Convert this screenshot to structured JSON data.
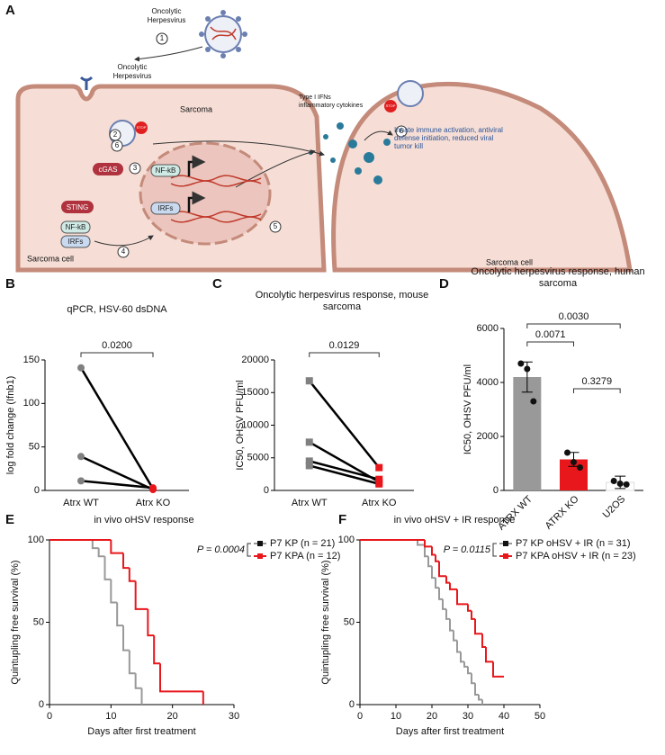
{
  "diagram": {
    "panel": "A",
    "virus_label_top": "Oncolytic Herpesvirus",
    "virus_label_mid": "Oncolytic Herpesvirus",
    "sarcoma": "Sarcoma",
    "sarcoma_cell_left": "Sarcoma cell",
    "sarcoma_cell_right": "Sarcoma cell",
    "cgas": "cGAS",
    "sting": "STING",
    "nfkb_cyto": "NF-kB",
    "irfs_cyto": "IRFs",
    "nfkb_nucleus": "NF-kB",
    "irfs_nucleus": "IRFs",
    "stop_1": "STOP",
    "stop_2": "STOP",
    "cytokines": "Type I IFNs inflammatory cytokines",
    "outcome": "Innate immune activation, antiviral defense initiation, reduced viral tumor kill",
    "steps": [
      1,
      2,
      6,
      3,
      4,
      5,
      6
    ]
  },
  "chart_data": [
    {
      "type": "slope",
      "panel": "B",
      "title": "qPCR, HSV-60 dsDNA",
      "ylabel": "log fold change (Ifnb1)",
      "categories": [
        "Atrx WT",
        "Atrx KO"
      ],
      "marker": "circle",
      "marker_colors": [
        "#808080",
        "#e8171c"
      ],
      "line_color": "#000000",
      "series": [
        {
          "values": [
            141,
            2
          ]
        },
        {
          "values": [
            39,
            1
          ]
        },
        {
          "values": [
            11,
            3
          ]
        }
      ],
      "ylim": [
        0,
        150
      ],
      "yticks": [
        0,
        50,
        100,
        150
      ],
      "comparisons": [
        "0.0200"
      ]
    },
    {
      "type": "slope",
      "panel": "C",
      "title": "Oncolytic herpesvirus response, mouse sarcoma",
      "ylabel": "IC50, OHSV PFU/ml",
      "categories": [
        "Atrx WT",
        "Atrx KO"
      ],
      "marker": "square",
      "marker_colors": [
        "#808080",
        "#e8171c"
      ],
      "line_color": "#000000",
      "series": [
        {
          "values": [
            16800,
            3500
          ]
        },
        {
          "values": [
            7400,
            1300
          ]
        },
        {
          "values": [
            4500,
            1700
          ]
        },
        {
          "values": [
            3800,
            1000
          ]
        }
      ],
      "ylim": [
        0,
        20000
      ],
      "yticks": [
        0,
        5000,
        10000,
        15000,
        20000
      ],
      "comparisons": [
        "0.0129"
      ]
    },
    {
      "type": "bar",
      "panel": "D",
      "title": "Oncolytic herpesvirus response, human sarcoma",
      "ylabel": "IC50, OHSV PFU/ml",
      "categories": [
        "ATRX WT",
        "ATRX KO",
        "U2OS"
      ],
      "values": [
        4200,
        1150,
        300
      ],
      "errors": [
        560,
        260,
        230
      ],
      "points": [
        [
          4700,
          4500,
          3300
        ],
        [
          1400,
          1050,
          850
        ],
        [
          350,
          250,
          220
        ]
      ],
      "colors": [
        "#999999",
        "#e8171c",
        "#ffffff"
      ],
      "ylim": [
        0,
        6000
      ],
      "yticks": [
        0,
        2000,
        4000,
        6000
      ],
      "comparisons": [
        "0.0071",
        "0.0030",
        "0.3279"
      ]
    },
    {
      "type": "survival",
      "panel": "E",
      "title": "in vivo oHSV response",
      "xlabel": "Days after first treatment",
      "ylabel": "Quintupling free survival (%)",
      "xlim": [
        0,
        30
      ],
      "xticks": [
        0,
        10,
        20,
        30
      ],
      "ylim": [
        0,
        100
      ],
      "yticks": [
        0,
        50,
        100
      ],
      "p_label": "P = 0.0004",
      "legend": "upper right",
      "series": [
        {
          "name": "P7 KP (n = 21)",
          "color": "#999999",
          "x": [
            0,
            7,
            8,
            9,
            10,
            11,
            12,
            13,
            14,
            15
          ],
          "values": [
            100,
            95,
            90,
            76,
            62,
            48,
            33,
            19,
            10,
            0
          ]
        },
        {
          "name": "P7 KPA (n = 12)",
          "color": "#e8171c",
          "x": [
            0,
            10,
            12,
            13,
            14,
            16,
            17,
            18,
            25
          ],
          "values": [
            100,
            92,
            83,
            75,
            58,
            42,
            25,
            8,
            0
          ]
        }
      ]
    },
    {
      "type": "survival",
      "panel": "F",
      "title": "in vivo oHSV + IR response",
      "xlabel": "Days after first treatment",
      "ylabel": "Quintupling free survival (%)",
      "xlim": [
        0,
        50
      ],
      "xticks": [
        0,
        10,
        20,
        30,
        40,
        50
      ],
      "ylim": [
        0,
        100
      ],
      "yticks": [
        0,
        50,
        100
      ],
      "p_label": "P = 0.0115",
      "legend": "upper right",
      "series": [
        {
          "name": "P7 KP oHSV + IR (n = 31)",
          "color": "#999999",
          "x": [
            0,
            16,
            18,
            19,
            20,
            21,
            22,
            23,
            24,
            25,
            26,
            27,
            28,
            29,
            30,
            31,
            32,
            33,
            34
          ],
          "values": [
            100,
            97,
            90,
            84,
            77,
            71,
            64,
            58,
            52,
            45,
            39,
            32,
            26,
            23,
            19,
            13,
            6,
            3,
            0
          ]
        },
        {
          "name": "P7 KPA oHSV + IR (n = 23)",
          "color": "#e8171c",
          "x": [
            0,
            18,
            20,
            21,
            22,
            24,
            25,
            27,
            30,
            31,
            32,
            34,
            35,
            37,
            40
          ],
          "values": [
            100,
            96,
            91,
            87,
            78,
            74,
            70,
            61,
            57,
            52,
            43,
            35,
            26,
            17,
            17
          ]
        }
      ]
    }
  ]
}
